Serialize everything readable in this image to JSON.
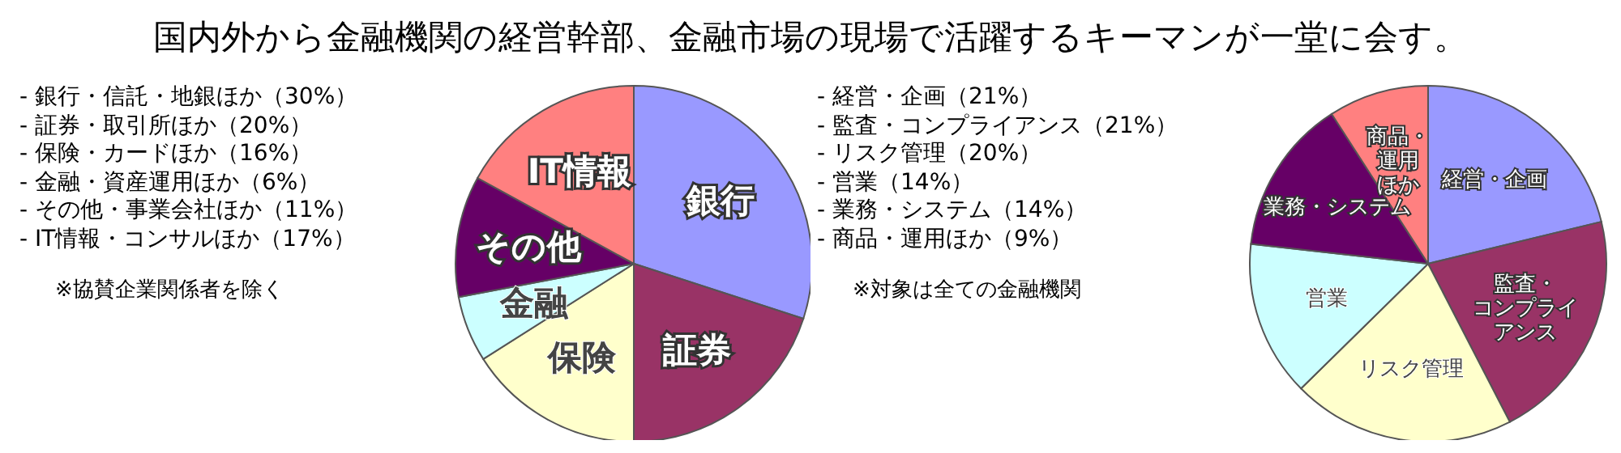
{
  "chart_data": [
    {
      "type": "pie",
      "title": "国内外から金融機関の経営幹部、金融市場の現場で活躍するキーマンが一堂に会す。",
      "categories": [
        "銀行",
        "証券",
        "保険",
        "金融",
        "その他",
        "IT情報"
      ],
      "values": [
        30,
        20,
        16,
        6,
        11,
        17
      ],
      "colors": [
        "#9999ff",
        "#993366",
        "#ffffcc",
        "#ccffff",
        "#660066",
        "#ff8080"
      ],
      "annotations": [
        "- 銀行・信託・地銀ほか（30%）",
        "- 証券・取引所ほか（20%）",
        "- 保険・カードほか（16%）",
        "- 金融・資産運用ほか（6%）",
        "- その他・事業会社ほか（11%）",
        "- IT情報・コンサルほか（17%）",
        "※協賛企業関係者を除く"
      ]
    },
    {
      "type": "pie",
      "categories": [
        "経営・企画",
        "監査・コンプライアンス",
        "リスク管理",
        "営業",
        "業務・システム",
        "商品・運用ほか"
      ],
      "values": [
        21,
        21,
        20,
        14,
        14,
        9
      ],
      "colors": [
        "#9999ff",
        "#993366",
        "#ffffcc",
        "#ccffff",
        "#660066",
        "#ff8080"
      ],
      "annotations": [
        "- 経営・企画（21%）",
        "- 監査・コンプライアンス（21%）",
        "- リスク管理（20%）",
        "- 営業（14%）",
        "- 業務・システム（14%）",
        "- 商品・運用ほか（9%）",
        "※対象は全ての金融機関"
      ]
    }
  ]
}
